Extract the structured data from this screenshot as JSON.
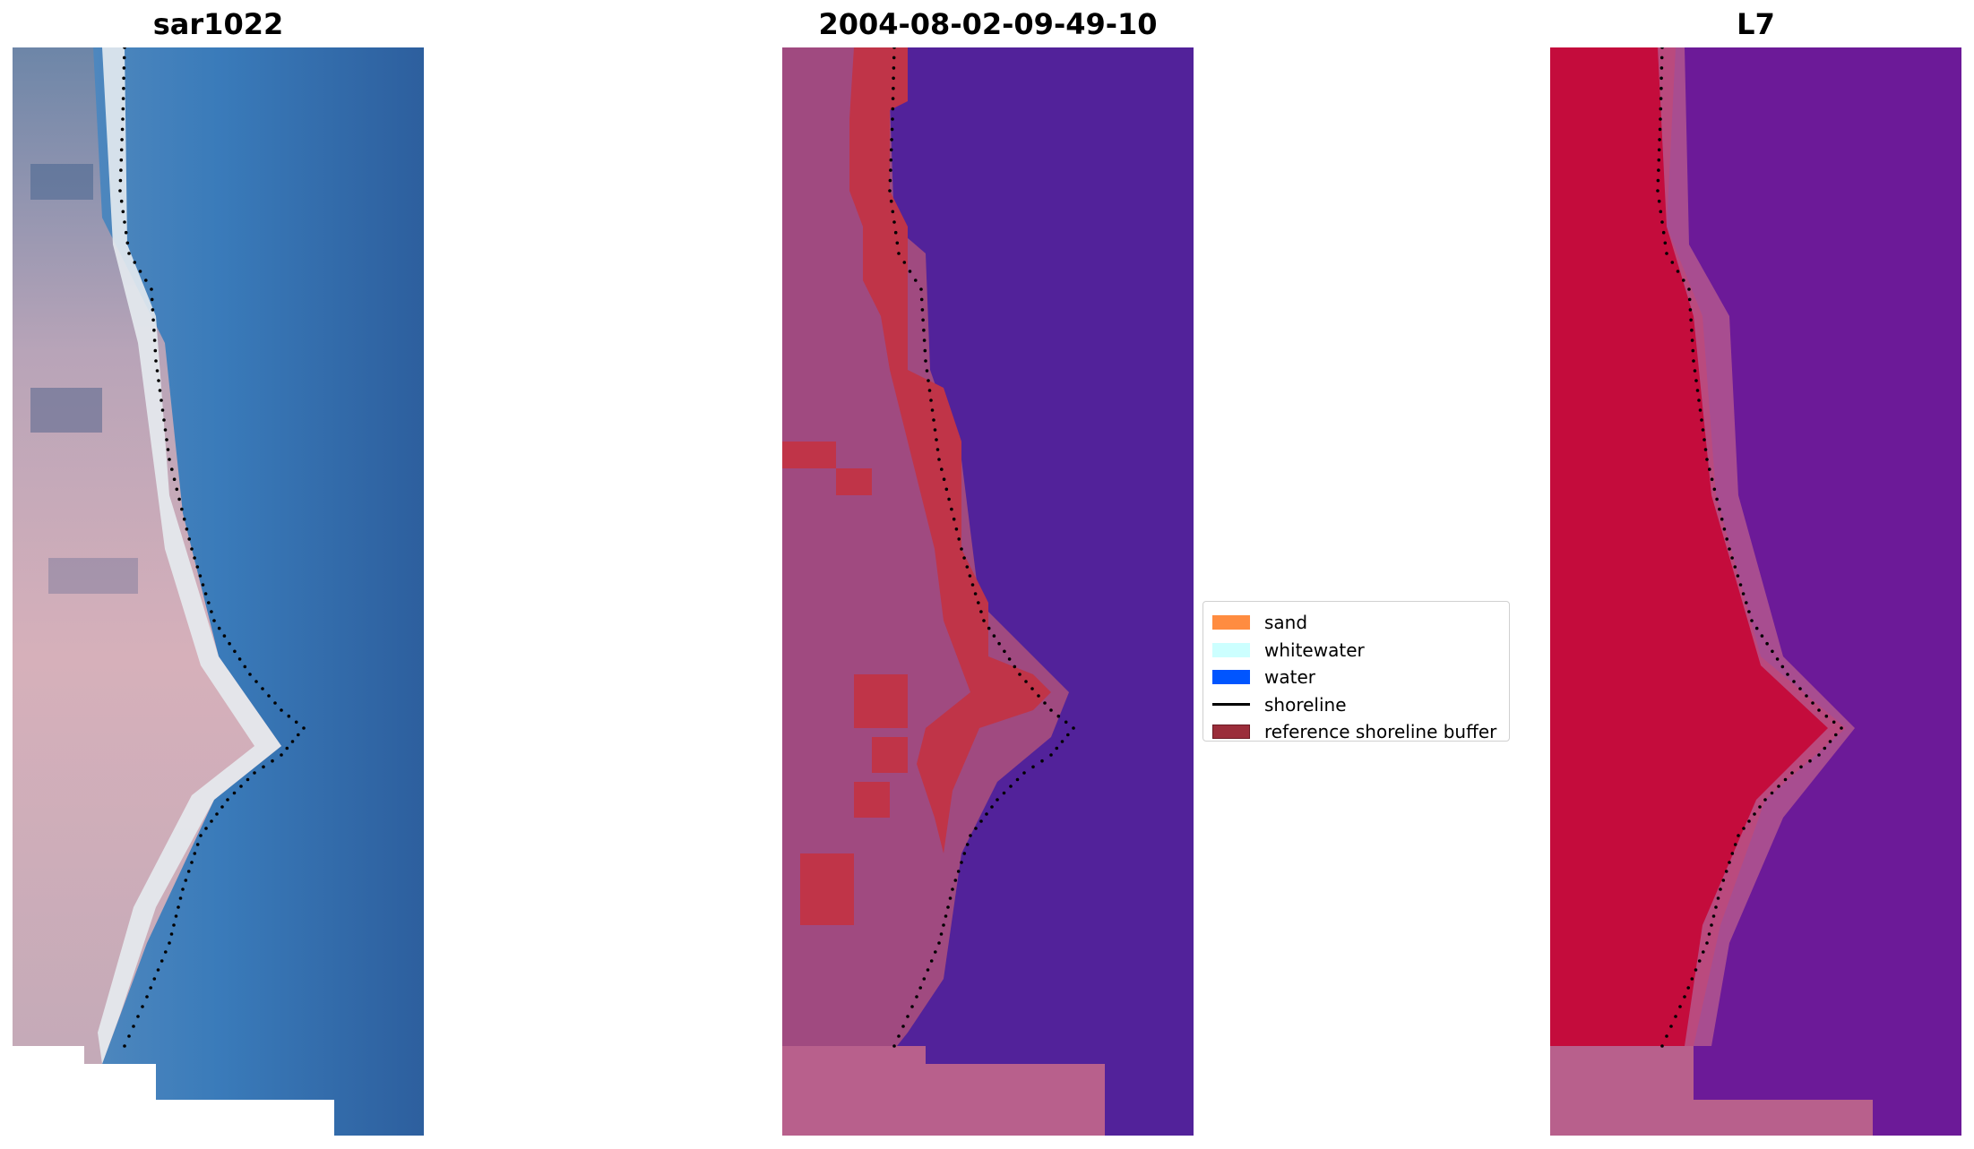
{
  "panels": [
    {
      "id": "rgb",
      "title": "sar1022"
    },
    {
      "id": "classified",
      "title": "2004-08-02-09-49-10"
    },
    {
      "id": "mndwi",
      "title": "L7"
    }
  ],
  "legend": {
    "items": [
      {
        "label": "sand",
        "color": "#ff8c40",
        "kind": "patch"
      },
      {
        "label": "whitewater",
        "color": "#ccffff",
        "kind": "patch"
      },
      {
        "label": "water",
        "color": "#0055ff",
        "kind": "patch"
      },
      {
        "label": "shoreline",
        "color": "#000000",
        "kind": "line"
      },
      {
        "label": "reference shoreline buffer",
        "color": "#9b2d3a",
        "kind": "patch"
      }
    ]
  },
  "colors": {
    "sea_rgb": "#3676b4",
    "sand_rgb": "#d8dde4",
    "land_rgb": "#c9a4b4",
    "classified_water": "#52229a",
    "classified_land": "#a04a80",
    "buffer": "#c03448",
    "l7_land": "#c40c3c",
    "l7_water": "#6c1a98",
    "nodata": "#b8608c",
    "shoreline_dots": "#000000"
  }
}
